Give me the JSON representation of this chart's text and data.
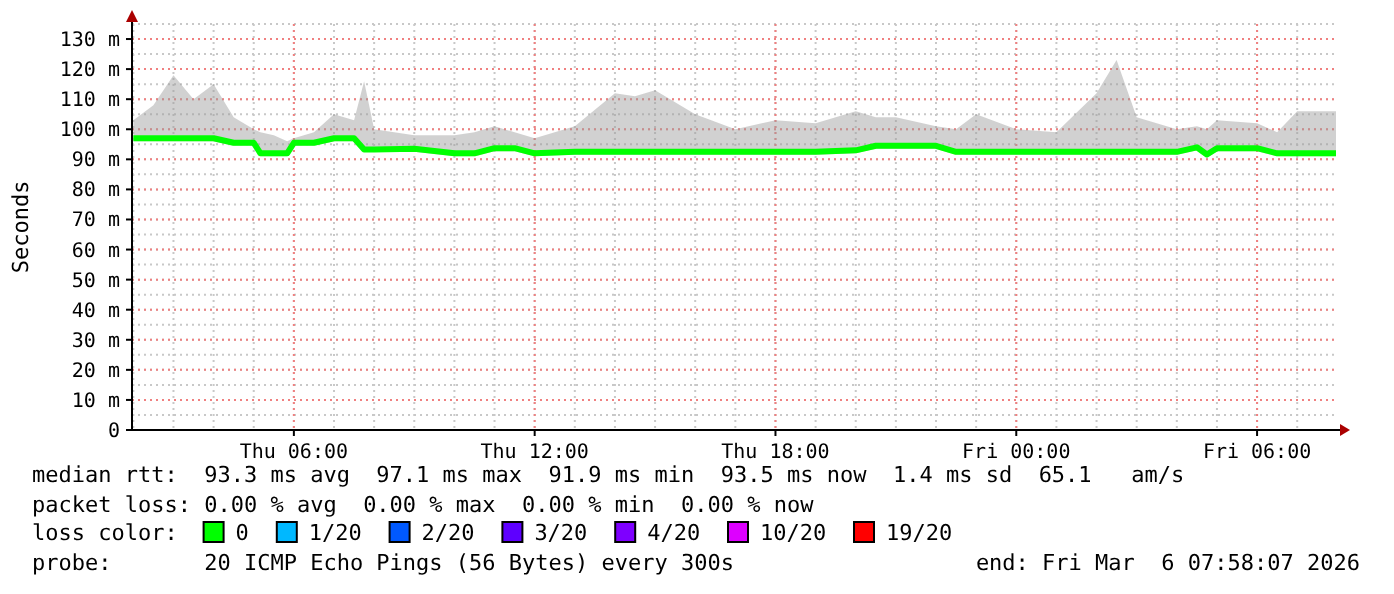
{
  "chart_data": {
    "type": "line",
    "ylabel": "Seconds",
    "legend_title": "loss color:",
    "legend": "bottom",
    "grid": true,
    "marker": "none",
    "line_style": "solid",
    "xlim": [
      "2026-03-05T01:58",
      "2026-03-06T07:58"
    ],
    "xticks": [
      {
        "value": "2026-03-05T06:00",
        "label": "Thu 06:00"
      },
      {
        "value": "2026-03-05T12:00",
        "label": "Thu 12:00"
      },
      {
        "value": "2026-03-05T18:00",
        "label": "Thu 18:00"
      },
      {
        "value": "2026-03-06T00:00",
        "label": "Fri 00:00"
      },
      {
        "value": "2026-03-06T06:00",
        "label": "Fri 06:00"
      }
    ],
    "ylim": [
      0,
      135
    ],
    "yticks": [
      0,
      {
        "value": 10,
        "label": "10 m"
      },
      {
        "value": 20,
        "label": "20 m"
      },
      {
        "value": 30,
        "label": "30 m"
      },
      {
        "value": 40,
        "label": "40 m"
      },
      {
        "value": 50,
        "label": "50 m"
      },
      {
        "value": 60,
        "label": "60 m"
      },
      {
        "value": 70,
        "label": "70 m"
      },
      {
        "value": 80,
        "label": "80 m"
      },
      {
        "value": 90,
        "label": "90 m"
      },
      {
        "value": 100,
        "label": "100 m"
      },
      {
        "value": 110,
        "label": "110 m"
      },
      {
        "value": 120,
        "label": "120 m"
      },
      {
        "value": 130,
        "label": "130 m"
      }
    ],
    "x": [
      "2026-03-05T02:00",
      "2026-03-05T02:30",
      "2026-03-05T03:00",
      "2026-03-05T03:30",
      "2026-03-05T04:00",
      "2026-03-05T04:30",
      "2026-03-05T05:00",
      "2026-03-05T05:10",
      "2026-03-05T05:30",
      "2026-03-05T05:50",
      "2026-03-05T06:00",
      "2026-03-05T06:30",
      "2026-03-05T07:00",
      "2026-03-05T07:30",
      "2026-03-05T07:45",
      "2026-03-05T08:00",
      "2026-03-05T09:00",
      "2026-03-05T10:00",
      "2026-03-05T10:30",
      "2026-03-05T11:00",
      "2026-03-05T11:30",
      "2026-03-05T12:00",
      "2026-03-05T13:00",
      "2026-03-05T14:00",
      "2026-03-05T14:30",
      "2026-03-05T15:00",
      "2026-03-05T16:00",
      "2026-03-05T17:00",
      "2026-03-05T18:00",
      "2026-03-05T19:00",
      "2026-03-05T20:00",
      "2026-03-05T20:30",
      "2026-03-05T21:00",
      "2026-03-05T22:00",
      "2026-03-05T22:30",
      "2026-03-05T23:00",
      "2026-03-06T00:00",
      "2026-03-06T01:00",
      "2026-03-06T02:00",
      "2026-03-06T02:30",
      "2026-03-06T03:00",
      "2026-03-06T04:00",
      "2026-03-06T04:30",
      "2026-03-06T04:45",
      "2026-03-06T05:00",
      "2026-03-06T06:00",
      "2026-03-06T06:30",
      "2026-03-06T07:00",
      "2026-03-06T07:58"
    ],
    "series": [
      {
        "name": "0",
        "color": "#00ff00",
        "values": [
          97,
          97,
          97,
          97,
          97,
          95.5,
          95.5,
          92,
          92,
          92,
          95.5,
          95.5,
          97,
          97,
          93.3,
          93.3,
          93.5,
          92,
          92,
          93.7,
          93.7,
          92,
          92.5,
          92.5,
          92.5,
          92.5,
          92.5,
          92.5,
          92.5,
          92.5,
          93,
          94.5,
          94.5,
          94.5,
          92.5,
          92.5,
          92.5,
          92.5,
          92.5,
          92.5,
          92.5,
          92.5,
          94,
          91.6,
          93.7,
          93.7,
          92,
          92,
          92
        ],
        "lower": [
          96,
          96,
          96,
          96,
          96,
          94.5,
          94.5,
          91,
          91,
          91,
          94.5,
          94.5,
          96,
          96,
          92.5,
          92.5,
          92.5,
          91,
          91,
          92.7,
          92.7,
          91,
          91.5,
          91.5,
          91.5,
          91.5,
          91.5,
          91.5,
          91.5,
          91.5,
          92,
          93.5,
          93.5,
          93.5,
          91.5,
          91.5,
          91.5,
          91.5,
          91.5,
          91.5,
          91.5,
          91.5,
          93,
          90.6,
          92.7,
          92.7,
          91,
          91,
          91
        ],
        "upper": [
          103,
          108,
          118,
          110,
          115,
          104,
          100,
          99,
          98,
          96,
          97,
          99,
          105,
          103,
          116,
          100,
          98,
          98,
          99,
          101,
          99,
          97,
          101,
          112,
          111,
          113,
          105,
          100,
          103,
          102,
          106,
          104,
          104,
          101,
          100,
          105,
          100,
          99,
          112,
          123,
          104,
          100,
          101,
          100,
          103,
          102,
          99,
          106,
          106
        ]
      },
      {
        "name": "1/20",
        "color": "#00b8ff",
        "values": [
          null,
          null,
          null,
          null,
          null,
          null,
          null,
          null,
          null,
          null,
          null,
          null,
          null,
          null,
          null,
          null,
          null,
          null,
          null,
          null,
          null,
          null,
          null,
          null,
          null,
          null,
          null,
          null,
          null,
          null,
          null,
          null,
          null,
          null,
          null,
          null,
          null,
          null,
          null,
          null,
          null,
          null,
          null,
          null,
          null,
          null,
          null,
          null,
          null
        ]
      },
      {
        "name": "2/20",
        "color": "#0059ff",
        "values": [
          null,
          null,
          null,
          null,
          null,
          null,
          null,
          null,
          null,
          null,
          null,
          null,
          null,
          null,
          null,
          null,
          null,
          null,
          null,
          null,
          null,
          null,
          null,
          null,
          null,
          null,
          null,
          null,
          null,
          null,
          null,
          null,
          null,
          null,
          null,
          null,
          null,
          null,
          null,
          null,
          null,
          null,
          null,
          null,
          null,
          null,
          null,
          null,
          null
        ]
      },
      {
        "name": "3/20",
        "color": "#5e00ff",
        "values": [
          null,
          null,
          null,
          null,
          null,
          null,
          null,
          null,
          null,
          null,
          null,
          null,
          null,
          null,
          null,
          null,
          null,
          null,
          null,
          null,
          null,
          null,
          null,
          null,
          null,
          null,
          null,
          null,
          null,
          null,
          null,
          null,
          null,
          null,
          null,
          null,
          null,
          null,
          null,
          null,
          null,
          null,
          null,
          null,
          null,
          null,
          null,
          null,
          null
        ]
      },
      {
        "name": "4/20",
        "color": "#7e00ff",
        "values": [
          null,
          null,
          null,
          null,
          null,
          null,
          null,
          null,
          null,
          null,
          null,
          null,
          null,
          null,
          null,
          null,
          null,
          null,
          null,
          null,
          null,
          null,
          null,
          null,
          null,
          null,
          null,
          null,
          null,
          null,
          null,
          null,
          null,
          null,
          null,
          null,
          null,
          null,
          null,
          null,
          null,
          null,
          null,
          null,
          null,
          null,
          null,
          null,
          null
        ]
      },
      {
        "name": "10/20",
        "color": "#dd00ff",
        "values": [
          null,
          null,
          null,
          null,
          null,
          null,
          null,
          null,
          null,
          null,
          null,
          null,
          null,
          null,
          null,
          null,
          null,
          null,
          null,
          null,
          null,
          null,
          null,
          null,
          null,
          null,
          null,
          null,
          null,
          null,
          null,
          null,
          null,
          null,
          null,
          null,
          null,
          null,
          null,
          null,
          null,
          null,
          null,
          null,
          null,
          null,
          null,
          null,
          null
        ]
      },
      {
        "name": "19/20",
        "color": "#ff0000",
        "values": [
          null,
          null,
          null,
          null,
          null,
          null,
          null,
          null,
          null,
          null,
          null,
          null,
          null,
          null,
          null,
          null,
          null,
          null,
          null,
          null,
          null,
          null,
          null,
          null,
          null,
          null,
          null,
          null,
          null,
          null,
          null,
          null,
          null,
          null,
          null,
          null,
          null,
          null,
          null,
          null,
          null,
          null,
          null,
          null,
          null,
          null,
          null,
          null,
          null
        ]
      }
    ],
    "annotations": [
      "median rtt:  93.3 ms avg  97.1 ms max  91.9 ms min  93.5 ms now  1.4 ms sd  65.1   am/s",
      "packet loss: 0.00 % avg  0.00 % max  0.00 % min  0.00 % now",
      "probe:       20 ICMP Echo Pings (56 Bytes) every 300s",
      "end: Fri Mar  6 07:58:07 2026"
    ]
  }
}
